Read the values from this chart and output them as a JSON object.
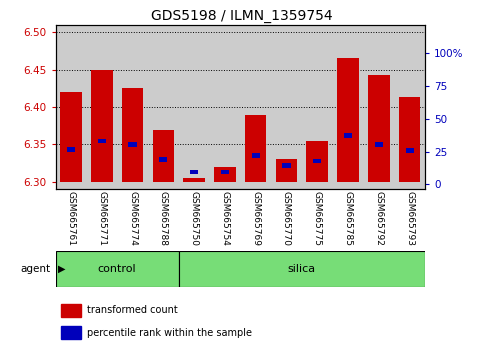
{
  "title": "GDS5198 / ILMN_1359754",
  "samples": [
    "GSM665761",
    "GSM665771",
    "GSM665774",
    "GSM665788",
    "GSM665750",
    "GSM665754",
    "GSM665769",
    "GSM665770",
    "GSM665775",
    "GSM665785",
    "GSM665792",
    "GSM665793"
  ],
  "red_values": [
    6.42,
    6.45,
    6.425,
    6.37,
    6.305,
    6.32,
    6.39,
    6.33,
    6.355,
    6.465,
    6.443,
    6.413
  ],
  "blue_values": [
    6.343,
    6.355,
    6.35,
    6.33,
    6.313,
    6.313,
    6.335,
    6.322,
    6.328,
    6.362,
    6.35,
    6.342
  ],
  "ylim_left": [
    6.29,
    6.51
  ],
  "ylim_right": [
    -3.75,
    121.25
  ],
  "yticks_left": [
    6.3,
    6.35,
    6.4,
    6.45,
    6.5
  ],
  "yticks_right": [
    0,
    25,
    50,
    75,
    100
  ],
  "ytick_labels_right": [
    "0",
    "25",
    "50",
    "75",
    "100%"
  ],
  "bar_bottom": 6.3,
  "bar_width": 0.7,
  "n_control": 4,
  "n_silica": 8,
  "control_label": "control",
  "silica_label": "silica",
  "agent_label": "agent",
  "legend_red": "transformed count",
  "legend_blue": "percentile rank within the sample",
  "red_color": "#cc0000",
  "blue_color": "#0000bb",
  "green_color": "#77dd77",
  "col_bg_color": "#cccccc",
  "plot_bg": "#ffffff",
  "title_fontsize": 10,
  "tick_fontsize": 7.5,
  "xtick_fontsize": 6.5,
  "legend_fontsize": 7
}
